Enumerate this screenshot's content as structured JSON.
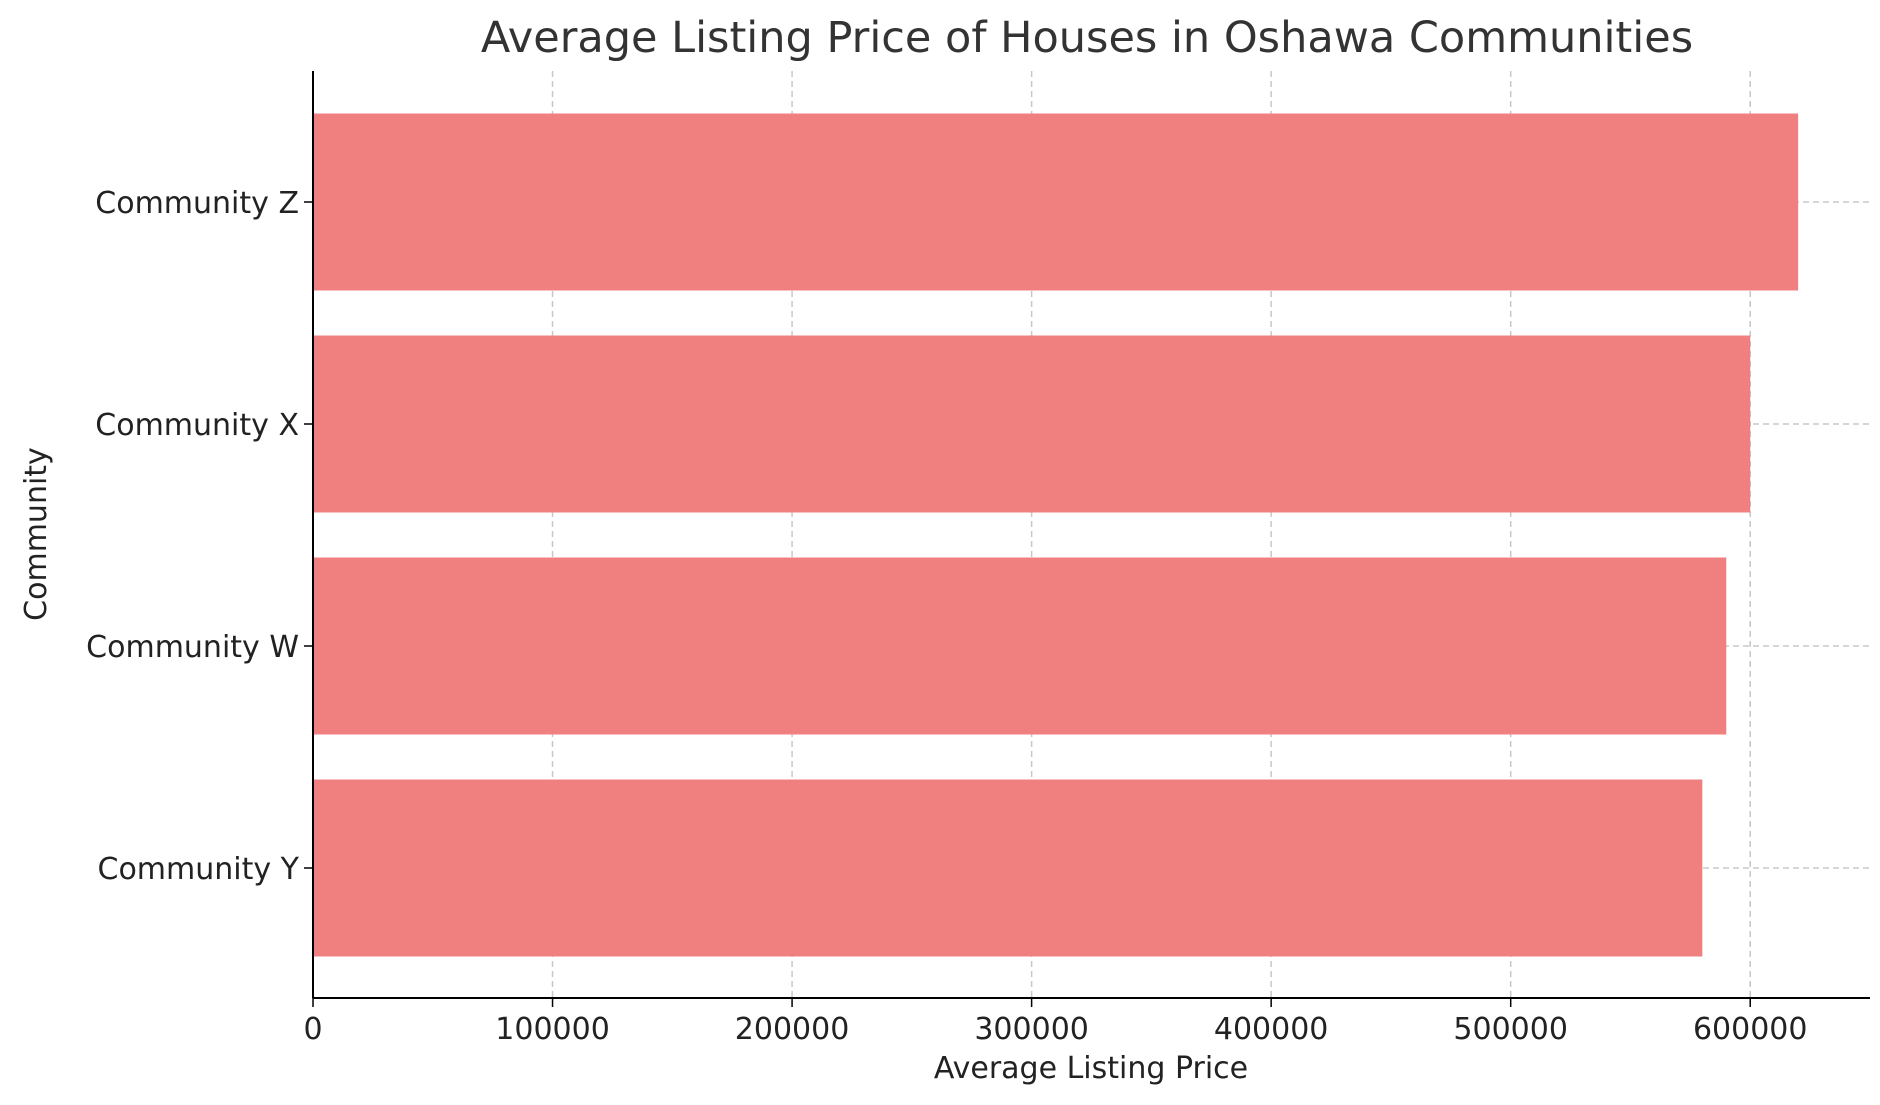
{
  "chart_data": {
    "type": "bar",
    "orientation": "horizontal",
    "title": "Average Listing Price of Houses in Oshawa Communities",
    "xlabel": "Average Listing Price",
    "ylabel": "Community",
    "categories": [
      "Community Y",
      "Community W",
      "Community X",
      "Community Z"
    ],
    "values": [
      580000,
      590000,
      600000,
      620000
    ],
    "xlim": [
      0,
      650000
    ],
    "xticks": [
      0,
      100000,
      200000,
      300000,
      400000,
      500000,
      600000
    ],
    "xtick_labels": [
      "0",
      "100000",
      "200000",
      "300000",
      "400000",
      "500000",
      "600000"
    ],
    "grid": true,
    "grid_style": "dashed",
    "bar_color": "#f08080",
    "legend": "none"
  }
}
